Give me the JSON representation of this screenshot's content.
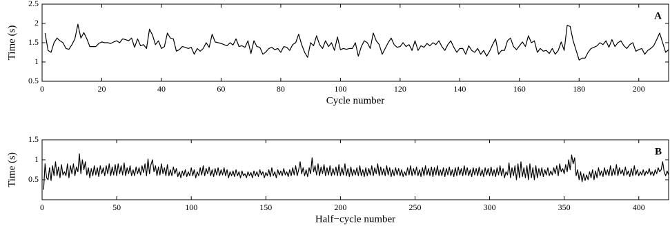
{
  "chart_data": [
    {
      "type": "line",
      "annotation": "A",
      "xlabel": "Cycle number",
      "ylabel": "Time (s)",
      "color": "#000000",
      "xlim": [
        0,
        210
      ],
      "xticks": [
        0,
        20,
        40,
        60,
        80,
        100,
        120,
        140,
        160,
        180,
        200
      ],
      "ylim": [
        0.5,
        2.5
      ],
      "yticks": [
        0.5,
        1,
        1.5,
        2,
        2.5
      ],
      "x": [
        1,
        2,
        3,
        4,
        5,
        6,
        7,
        8,
        9,
        10,
        11,
        12,
        13,
        14,
        15,
        16,
        17,
        18,
        19,
        20,
        21,
        22,
        23,
        24,
        25,
        26,
        27,
        28,
        29,
        30,
        31,
        32,
        33,
        34,
        35,
        36,
        37,
        38,
        39,
        40,
        41,
        42,
        43,
        44,
        45,
        46,
        47,
        48,
        49,
        50,
        51,
        52,
        53,
        54,
        55,
        56,
        57,
        58,
        59,
        60,
        61,
        62,
        63,
        64,
        65,
        66,
        67,
        68,
        69,
        70,
        71,
        72,
        73,
        74,
        75,
        76,
        77,
        78,
        79,
        80,
        81,
        82,
        83,
        84,
        85,
        86,
        87,
        88,
        89,
        90,
        91,
        92,
        93,
        94,
        95,
        96,
        97,
        98,
        99,
        100,
        101,
        102,
        103,
        104,
        105,
        106,
        107,
        108,
        109,
        110,
        111,
        112,
        113,
        114,
        115,
        116,
        117,
        118,
        119,
        120,
        121,
        122,
        123,
        124,
        125,
        126,
        127,
        128,
        129,
        130,
        131,
        132,
        133,
        134,
        135,
        136,
        137,
        138,
        139,
        140,
        141,
        142,
        143,
        144,
        145,
        146,
        147,
        148,
        149,
        150,
        151,
        152,
        153,
        154,
        155,
        156,
        157,
        158,
        159,
        160,
        161,
        162,
        163,
        164,
        165,
        166,
        167,
        168,
        169,
        170,
        171,
        172,
        173,
        174,
        175,
        176,
        177,
        178,
        179,
        180,
        181,
        182,
        183,
        184,
        185,
        186,
        187,
        188,
        189,
        190,
        191,
        192,
        193,
        194,
        195,
        196,
        197,
        198,
        199,
        200,
        201,
        202,
        203,
        204,
        205,
        206,
        207,
        208,
        209,
        210
      ],
      "values": [
        1.75,
        1.3,
        1.25,
        1.5,
        1.62,
        1.55,
        1.5,
        1.35,
        1.33,
        1.45,
        1.6,
        1.98,
        1.62,
        1.76,
        1.6,
        1.4,
        1.4,
        1.4,
        1.48,
        1.52,
        1.5,
        1.5,
        1.48,
        1.52,
        1.55,
        1.5,
        1.6,
        1.58,
        1.55,
        1.62,
        1.38,
        1.6,
        1.42,
        1.45,
        1.35,
        1.85,
        1.7,
        1.45,
        1.55,
        1.35,
        1.4,
        1.75,
        1.62,
        1.6,
        1.28,
        1.32,
        1.4,
        1.38,
        1.35,
        1.38,
        1.2,
        1.35,
        1.28,
        1.35,
        1.5,
        1.38,
        1.72,
        1.52,
        1.5,
        1.48,
        1.45,
        1.42,
        1.5,
        1.44,
        1.6,
        1.4,
        1.42,
        1.38,
        1.55,
        1.22,
        1.55,
        1.4,
        1.38,
        1.2,
        1.26,
        1.35,
        1.38,
        1.32,
        1.35,
        1.25,
        1.4,
        1.38,
        1.3,
        1.45,
        1.5,
        1.72,
        1.45,
        1.25,
        1.12,
        1.5,
        1.42,
        1.68,
        1.45,
        1.35,
        1.55,
        1.4,
        1.5,
        1.3,
        1.65,
        1.32,
        1.35,
        1.33,
        1.35,
        1.35,
        1.5,
        1.15,
        1.4,
        1.55,
        1.5,
        1.35,
        1.75,
        1.55,
        1.45,
        1.2,
        1.35,
        1.5,
        1.62,
        1.45,
        1.38,
        1.4,
        1.5,
        1.4,
        1.45,
        1.3,
        1.55,
        1.3,
        1.42,
        1.38,
        1.48,
        1.42,
        1.5,
        1.45,
        1.55,
        1.4,
        1.3,
        1.45,
        1.55,
        1.38,
        1.25,
        1.35,
        1.35,
        1.2,
        1.42,
        1.3,
        1.25,
        1.35,
        1.2,
        1.3,
        1.15,
        1.28,
        1.45,
        1.6,
        1.2,
        1.3,
        1.3,
        1.55,
        1.62,
        1.4,
        1.32,
        1.42,
        1.52,
        1.4,
        1.68,
        1.5,
        1.55,
        1.25,
        1.35,
        1.28,
        1.3,
        1.22,
        1.35,
        1.2,
        1.3,
        1.52,
        1.3,
        1.95,
        1.92,
        1.55,
        1.3,
        1.05,
        1.1,
        1.1,
        1.25,
        1.35,
        1.38,
        1.42,
        1.5,
        1.45,
        1.55,
        1.38,
        1.58,
        1.4,
        1.5,
        1.55,
        1.42,
        1.35,
        1.45,
        1.5,
        1.28,
        1.32,
        1.35,
        1.2,
        1.3,
        1.35,
        1.42,
        1.58,
        1.75,
        1.5,
        1.25,
        1.32
      ]
    },
    {
      "type": "line",
      "annotation": "B",
      "xlabel": "Half−cycle number",
      "ylabel": "Time (s)",
      "color": "#000000",
      "xlim": [
        0,
        420
      ],
      "xticks": [
        0,
        50,
        100,
        150,
        200,
        250,
        300,
        350,
        400
      ],
      "ylim": [
        0,
        1.5
      ],
      "yticks": [
        0.5,
        1,
        1.5
      ],
      "x": [
        1,
        2,
        3,
        4,
        5,
        6,
        7,
        8,
        9,
        10,
        11,
        12,
        13,
        14,
        15,
        16,
        17,
        18,
        19,
        20,
        21,
        22,
        23,
        24,
        25,
        26,
        27,
        28,
        29,
        30,
        31,
        32,
        33,
        34,
        35,
        36,
        37,
        38,
        39,
        40,
        41,
        42,
        43,
        44,
        45,
        46,
        47,
        48,
        49,
        50,
        51,
        52,
        53,
        54,
        55,
        56,
        57,
        58,
        59,
        60,
        61,
        62,
        63,
        64,
        65,
        66,
        67,
        68,
        69,
        70,
        71,
        72,
        73,
        74,
        75,
        76,
        77,
        78,
        79,
        80,
        81,
        82,
        83,
        84,
        85,
        86,
        87,
        88,
        89,
        90,
        91,
        92,
        93,
        94,
        95,
        96,
        97,
        98,
        99,
        100,
        101,
        102,
        103,
        104,
        105,
        106,
        107,
        108,
        109,
        110,
        111,
        112,
        113,
        114,
        115,
        116,
        117,
        118,
        119,
        120,
        121,
        122,
        123,
        124,
        125,
        126,
        127,
        128,
        129,
        130,
        131,
        132,
        133,
        134,
        135,
        136,
        137,
        138,
        139,
        140,
        141,
        142,
        143,
        144,
        145,
        146,
        147,
        148,
        149,
        150,
        151,
        152,
        153,
        154,
        155,
        156,
        157,
        158,
        159,
        160,
        161,
        162,
        163,
        164,
        165,
        166,
        167,
        168,
        169,
        170,
        171,
        172,
        173,
        174,
        175,
        176,
        177,
        178,
        179,
        180,
        181,
        182,
        183,
        184,
        185,
        186,
        187,
        188,
        189,
        190,
        191,
        192,
        193,
        194,
        195,
        196,
        197,
        198,
        199,
        200,
        201,
        202,
        203,
        204,
        205,
        206,
        207,
        208,
        209,
        210,
        211,
        212,
        213,
        214,
        215,
        216,
        217,
        218,
        219,
        220,
        221,
        222,
        223,
        224,
        225,
        226,
        227,
        228,
        229,
        230,
        231,
        232,
        233,
        234,
        235,
        236,
        237,
        238,
        239,
        240,
        241,
        242,
        243,
        244,
        245,
        246,
        247,
        248,
        249,
        250,
        251,
        252,
        253,
        254,
        255,
        256,
        257,
        258,
        259,
        260,
        261,
        262,
        263,
        264,
        265,
        266,
        267,
        268,
        269,
        270,
        271,
        272,
        273,
        274,
        275,
        276,
        277,
        278,
        279,
        280,
        281,
        282,
        283,
        284,
        285,
        286,
        287,
        288,
        289,
        290,
        291,
        292,
        293,
        294,
        295,
        296,
        297,
        298,
        299,
        300,
        301,
        302,
        303,
        304,
        305,
        306,
        307,
        308,
        309,
        310,
        311,
        312,
        313,
        314,
        315,
        316,
        317,
        318,
        319,
        320,
        321,
        322,
        323,
        324,
        325,
        326,
        327,
        328,
        329,
        330,
        331,
        332,
        333,
        334,
        335,
        336,
        337,
        338,
        339,
        340,
        341,
        342,
        343,
        344,
        345,
        346,
        347,
        348,
        349,
        350,
        351,
        352,
        353,
        354,
        355,
        356,
        357,
        358,
        359,
        360,
        361,
        362,
        363,
        364,
        365,
        366,
        367,
        368,
        369,
        370,
        371,
        372,
        373,
        374,
        375,
        376,
        377,
        378,
        379,
        380,
        381,
        382,
        383,
        384,
        385,
        386,
        387,
        388,
        389,
        390,
        391,
        392,
        393,
        394,
        395,
        396,
        397,
        398,
        399,
        400,
        401,
        402,
        403,
        404,
        405,
        406,
        407,
        408,
        409,
        410,
        411,
        412,
        413,
        414,
        415,
        416,
        417,
        418,
        419,
        420
      ],
      "values": [
        0.25,
        0.9,
        0.55,
        0.5,
        0.8,
        0.48,
        0.85,
        0.6,
        0.95,
        0.6,
        0.82,
        0.55,
        0.88,
        0.62,
        0.7,
        0.6,
        0.9,
        0.55,
        0.85,
        0.65,
        0.9,
        0.6,
        0.82,
        0.7,
        1.15,
        0.65,
        1.0,
        0.75,
        0.95,
        0.62,
        0.8,
        0.55,
        0.78,
        0.6,
        0.85,
        0.62,
        0.8,
        0.58,
        0.85,
        0.65,
        0.8,
        0.6,
        0.85,
        0.65,
        0.9,
        0.6,
        0.82,
        0.62,
        0.88,
        0.6,
        0.9,
        0.65,
        0.85,
        0.62,
        0.92,
        0.6,
        0.8,
        0.65,
        0.85,
        0.6,
        0.75,
        0.6,
        0.82,
        0.65,
        0.8,
        0.62,
        0.85,
        0.68,
        0.9,
        0.6,
        1.02,
        0.65,
        0.88,
        1.0,
        0.7,
        0.85,
        0.6,
        0.82,
        0.62,
        0.9,
        0.65,
        0.8,
        0.6,
        0.88,
        0.6,
        0.75,
        0.6,
        0.82,
        0.65,
        0.78,
        0.58,
        0.7,
        0.55,
        0.72,
        0.6,
        0.75,
        0.58,
        0.7,
        0.6,
        0.8,
        0.6,
        0.75,
        0.55,
        0.7,
        0.6,
        0.8,
        0.62,
        0.85,
        0.6,
        0.78,
        0.65,
        0.82,
        0.6,
        0.75,
        0.58,
        0.78,
        0.62,
        0.8,
        0.6,
        0.75,
        0.62,
        0.8,
        0.6,
        0.75,
        0.55,
        0.7,
        0.6,
        0.72,
        0.58,
        0.75,
        0.6,
        0.7,
        0.55,
        0.72,
        0.6,
        0.65,
        0.55,
        0.7,
        0.6,
        0.68,
        0.55,
        0.72,
        0.6,
        0.7,
        0.58,
        0.75,
        0.62,
        0.7,
        0.55,
        0.68,
        0.6,
        0.75,
        0.58,
        0.8,
        0.6,
        0.7,
        0.55,
        0.75,
        0.62,
        0.72,
        0.6,
        0.78,
        0.62,
        0.7,
        0.58,
        0.75,
        0.6,
        0.8,
        0.62,
        0.85,
        0.6,
        0.75,
        0.95,
        0.65,
        0.8,
        0.6,
        0.75,
        0.58,
        0.8,
        0.65,
        1.05,
        0.7,
        0.85,
        0.62,
        0.9,
        0.6,
        0.82,
        0.65,
        0.88,
        0.6,
        0.8,
        0.62,
        0.85,
        0.6,
        0.78,
        0.62,
        0.82,
        0.6,
        0.88,
        0.6,
        0.8,
        0.62,
        0.9,
        0.6,
        0.78,
        0.58,
        0.82,
        0.6,
        0.75,
        0.62,
        0.8,
        0.6,
        0.85,
        0.6,
        0.75,
        0.58,
        0.8,
        0.6,
        0.78,
        0.62,
        0.85,
        0.6,
        0.8,
        0.65,
        0.9,
        0.6,
        0.82,
        0.62,
        0.78,
        0.6,
        0.85,
        0.62,
        0.8,
        0.58,
        0.75,
        0.6,
        0.8,
        0.62,
        0.78,
        0.6,
        0.75,
        0.58,
        0.7,
        0.6,
        0.8,
        0.62,
        0.85,
        0.6,
        0.78,
        0.62,
        0.82,
        0.6,
        0.75,
        0.58,
        0.8,
        0.6,
        0.85,
        0.62,
        0.78,
        0.6,
        0.82,
        0.58,
        0.8,
        0.62,
        0.85,
        0.6,
        0.75,
        0.6,
        0.8,
        0.58,
        0.78,
        0.62,
        0.82,
        0.6,
        0.75,
        0.58,
        0.8,
        0.6,
        0.82,
        0.62,
        0.78,
        0.6,
        0.85,
        0.62,
        0.8,
        0.6,
        0.75,
        0.58,
        0.8,
        0.62,
        0.78,
        0.6,
        0.82,
        0.6,
        0.75,
        0.58,
        0.8,
        0.62,
        0.78,
        0.6,
        0.82,
        0.6,
        0.75,
        0.58,
        0.8,
        0.62,
        0.85,
        0.6,
        0.78,
        0.55,
        0.7,
        0.62,
        0.92,
        0.55,
        0.8,
        0.6,
        0.85,
        0.5,
        0.9,
        0.55,
        0.95,
        0.58,
        0.8,
        0.55,
        0.85,
        0.5,
        0.9,
        0.55,
        0.8,
        0.5,
        0.85,
        0.55,
        0.78,
        0.6,
        0.8,
        0.58,
        0.75,
        0.62,
        0.8,
        0.6,
        0.72,
        0.62,
        0.8,
        0.65,
        0.85,
        0.6,
        0.9,
        0.7,
        0.78,
        0.65,
        0.88,
        0.7,
        1.0,
        0.75,
        1.12,
        0.9,
        1.05,
        0.6,
        0.75,
        0.5,
        0.7,
        0.45,
        0.65,
        0.48,
        0.62,
        0.5,
        0.7,
        0.55,
        0.75,
        0.5,
        0.72,
        0.55,
        0.8,
        0.6,
        0.72,
        0.58,
        0.8,
        0.62,
        0.75,
        0.6,
        0.85,
        0.6,
        0.78,
        0.62,
        0.88,
        0.6,
        0.8,
        0.65,
        0.75,
        0.6,
        0.82,
        0.62,
        0.72,
        0.58,
        0.78,
        0.6,
        0.85,
        0.62,
        0.75,
        0.6,
        0.7,
        0.62,
        0.75,
        0.6,
        0.72,
        0.65,
        0.78,
        0.62,
        0.7,
        0.6,
        0.75,
        0.65,
        0.8,
        0.7,
        0.75,
        0.95,
        0.7,
        0.6,
        0.72,
        0.62
      ]
    }
  ]
}
